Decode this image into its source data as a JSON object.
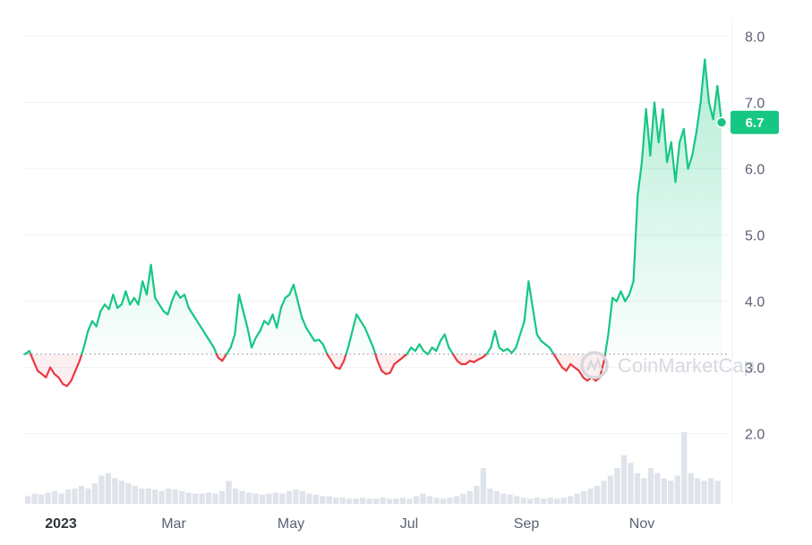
{
  "chart_data": {
    "type": "line",
    "x_labels": [
      "2023",
      "Mar",
      "May",
      "Jul",
      "Sep",
      "Nov"
    ],
    "y_ticks": [
      "2.0",
      "3.0",
      "4.0",
      "5.0",
      "6.0",
      "7.0",
      "8.0"
    ],
    "ylim": [
      1.3,
      8.3
    ],
    "baseline": 3.2,
    "last_value_label": "6.7",
    "watermark": "CoinMarketCap",
    "colors": {
      "up": "#16c784",
      "down": "#ea3943",
      "grid": "#eff2f5",
      "volume": "#dfe3ea",
      "watermark": "#d6d9e0"
    },
    "series": [
      {
        "values": [
          3.2,
          3.25,
          3.1,
          2.95,
          2.9,
          2.85,
          3.0,
          2.9,
          2.85,
          2.75,
          2.72,
          2.8,
          2.95,
          3.1,
          3.3,
          3.55,
          3.7,
          3.62,
          3.85,
          3.95,
          3.88,
          4.1,
          3.9,
          3.95,
          4.15,
          3.95,
          4.05,
          3.95,
          4.3,
          4.1,
          4.55,
          4.05,
          3.95,
          3.85,
          3.8,
          4.0,
          4.15,
          4.05,
          4.1,
          3.9,
          3.8,
          3.7,
          3.6,
          3.5,
          3.4,
          3.3,
          3.15,
          3.1,
          3.2,
          3.3,
          3.5,
          4.1,
          3.85,
          3.6,
          3.3,
          3.45,
          3.55,
          3.7,
          3.65,
          3.8,
          3.6,
          3.9,
          4.05,
          4.1,
          4.25,
          4.0,
          3.75,
          3.6,
          3.5,
          3.4,
          3.42,
          3.35,
          3.2,
          3.1,
          3.0,
          2.98,
          3.1,
          3.3,
          3.55,
          3.8,
          3.7,
          3.6,
          3.45,
          3.3,
          3.1,
          2.95,
          2.9,
          2.92,
          3.05,
          3.1,
          3.15,
          3.2,
          3.3,
          3.25,
          3.35,
          3.25,
          3.2,
          3.3,
          3.25,
          3.4,
          3.5,
          3.3,
          3.2,
          3.1,
          3.05,
          3.05,
          3.1,
          3.08,
          3.12,
          3.15,
          3.2,
          3.3,
          3.55,
          3.3,
          3.25,
          3.28,
          3.22,
          3.3,
          3.5,
          3.7,
          4.3,
          3.9,
          3.5,
          3.4,
          3.35,
          3.3,
          3.2,
          3.1,
          3.0,
          2.95,
          3.05,
          3.0,
          2.95,
          2.85,
          2.8,
          2.85,
          2.8,
          2.85,
          3.1,
          3.5,
          4.05,
          4.0,
          4.15,
          4.0,
          4.1,
          4.3,
          5.6,
          6.1,
          6.9,
          6.2,
          7.0,
          6.4,
          6.9,
          6.1,
          6.4,
          5.8,
          6.4,
          6.6,
          6.0,
          6.2,
          6.55,
          7.0,
          7.65,
          7.0,
          6.75,
          7.25,
          6.7
        ]
      }
    ],
    "volume": [
      0.15,
      0.2,
      0.18,
      0.22,
      0.25,
      0.2,
      0.28,
      0.3,
      0.35,
      0.3,
      0.4,
      0.55,
      0.6,
      0.5,
      0.45,
      0.4,
      0.35,
      0.3,
      0.3,
      0.28,
      0.25,
      0.3,
      0.28,
      0.25,
      0.22,
      0.2,
      0.2,
      0.22,
      0.2,
      0.25,
      0.45,
      0.3,
      0.25,
      0.22,
      0.2,
      0.18,
      0.2,
      0.22,
      0.2,
      0.25,
      0.28,
      0.25,
      0.2,
      0.18,
      0.15,
      0.15,
      0.12,
      0.12,
      0.1,
      0.1,
      0.12,
      0.1,
      0.1,
      0.12,
      0.1,
      0.1,
      0.12,
      0.1,
      0.15,
      0.2,
      0.15,
      0.12,
      0.1,
      0.12,
      0.15,
      0.2,
      0.25,
      0.35,
      0.7,
      0.3,
      0.25,
      0.2,
      0.18,
      0.15,
      0.12,
      0.1,
      0.12,
      0.1,
      0.12,
      0.1,
      0.12,
      0.15,
      0.2,
      0.25,
      0.3,
      0.35,
      0.45,
      0.55,
      0.7,
      0.95,
      0.8,
      0.6,
      0.5,
      0.7,
      0.6,
      0.5,
      0.45,
      0.55,
      1.4,
      0.6,
      0.5,
      0.45,
      0.5,
      0.45
    ]
  }
}
